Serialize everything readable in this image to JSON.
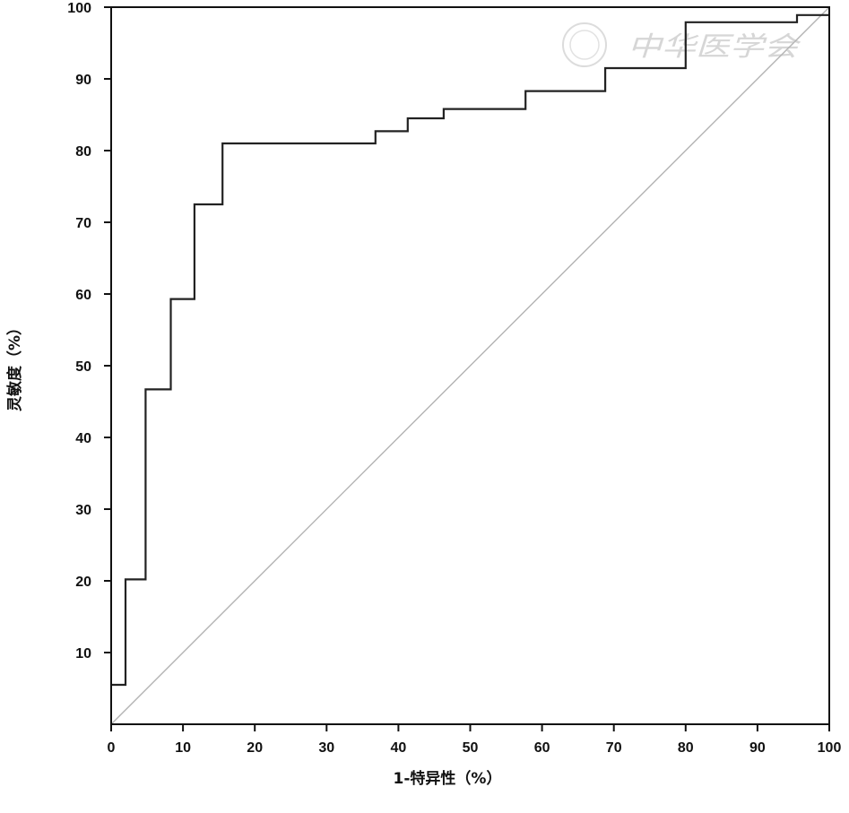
{
  "chart_data": {
    "type": "line",
    "xlabel": "1-特异性（%）",
    "ylabel": "灵敏度（%）",
    "xlim": [
      0,
      100
    ],
    "ylim": [
      0,
      100
    ],
    "x_ticks": [
      0,
      10,
      20,
      30,
      40,
      50,
      60,
      70,
      80,
      90,
      100
    ],
    "y_ticks": [
      10,
      20,
      30,
      40,
      50,
      60,
      70,
      80,
      90,
      100
    ],
    "grid": false,
    "legend": "none",
    "watermark": "中华医学会",
    "series": [
      {
        "step": true,
        "x": [
          0,
          2.0,
          2.0,
          4.8,
          4.8,
          8.3,
          8.3,
          11.6,
          11.6,
          15.5,
          15.5,
          36.8,
          36.8,
          41.3,
          41.3,
          46.3,
          46.3,
          57.7,
          57.7,
          68.8,
          68.8,
          80.0,
          80.0,
          95.5,
          95.5,
          100
        ],
        "y": [
          5.5,
          5.5,
          20.2,
          20.2,
          46.7,
          46.7,
          59.3,
          59.3,
          72.5,
          72.5,
          81.0,
          81.0,
          82.7,
          82.7,
          84.5,
          84.5,
          85.8,
          85.8,
          88.3,
          88.3,
          91.5,
          91.5,
          97.9,
          97.9,
          98.9,
          98.9
        ],
        "color": "#222222"
      },
      {
        "x": [
          0,
          100
        ],
        "y": [
          0,
          100
        ],
        "color": "#b3b3b3"
      }
    ]
  }
}
